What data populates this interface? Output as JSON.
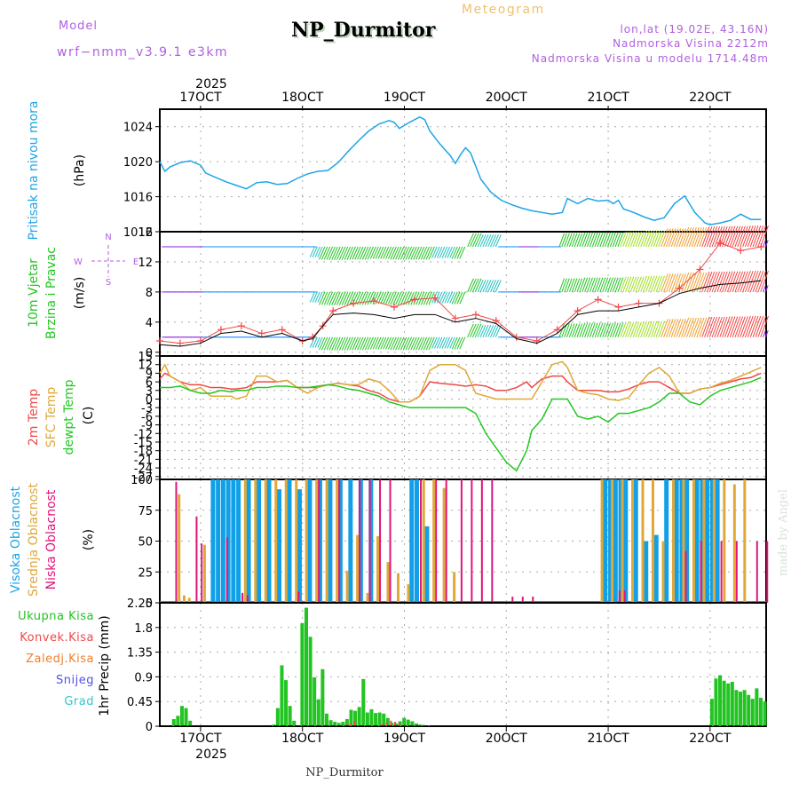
{
  "header": {
    "model_label": "Model",
    "model_name": "wrf−nmm_v3.9.1  e3km",
    "title": "NP_Durmitor",
    "subtitle": "Meteogram",
    "location": "lon,lat (19.02E, 43.16N)",
    "elevation": "Nadmorska Visina 2212m",
    "model_elevation": "Nadmorska Visina u modelu 1714.48m",
    "footer_title": "NP_Durmitor",
    "watermark": "made by Angel"
  },
  "colors": {
    "pressure": "#1ea5e6",
    "wind_label": "#22c422",
    "compass": "#b060e0",
    "temp2m": "#f04848",
    "sfc_temp": "#e0a838",
    "dewpt": "#22c822",
    "cloud_high": "#10a0e8",
    "cloud_mid": "#e0a838",
    "cloud_low": "#e0157a",
    "precip_total": "#22c422",
    "precip_conv": "#f04848",
    "precip_frz": "#f08030",
    "snow": "#5050e8",
    "hail": "#30c8c8",
    "model_text": "#b060e0",
    "meteogram_text": "#f0c070"
  },
  "time_axis": {
    "year": "2025",
    "start_day": 16.6,
    "end_day": 22.55,
    "ticks": [
      {
        "day": 17,
        "label": "17OCT"
      },
      {
        "day": 18,
        "label": "18OCT"
      },
      {
        "day": 19,
        "label": "19OCT"
      },
      {
        "day": 20,
        "label": "20OCT"
      },
      {
        "day": 21,
        "label": "21OCT"
      },
      {
        "day": 22,
        "label": "22OCT"
      }
    ]
  },
  "chart_data": [
    {
      "type": "line",
      "title": "Pritisak na nivou mora",
      "ylabel": "(hPa)",
      "ylim": [
        1012,
        1026
      ],
      "yticks": [
        1012,
        1016,
        1020,
        1024
      ],
      "grid": true,
      "x": [
        16.6,
        16.65,
        16.7,
        16.8,
        16.9,
        17.0,
        17.05,
        17.15,
        17.25,
        17.35,
        17.45,
        17.55,
        17.65,
        17.75,
        17.85,
        17.95,
        18.05,
        18.15,
        18.25,
        18.35,
        18.45,
        18.55,
        18.65,
        18.75,
        18.85,
        18.9,
        18.95,
        19.05,
        19.15,
        19.2,
        19.25,
        19.35,
        19.45,
        19.5,
        19.55,
        19.6,
        19.65,
        19.75,
        19.85,
        19.95,
        20.05,
        20.15,
        20.25,
        20.35,
        20.45,
        20.55,
        20.6,
        20.7,
        20.8,
        20.9,
        21.0,
        21.05,
        21.1,
        21.15,
        21.25,
        21.35,
        21.45,
        21.55,
        21.65,
        21.75,
        21.85,
        21.95,
        22.0,
        22.1,
        22.2,
        22.3,
        22.4,
        22.5
      ],
      "series": [
        {
          "name": "SLP",
          "values": [
            1020.0,
            1018.9,
            1019.4,
            1019.9,
            1020.1,
            1019.6,
            1018.7,
            1018.2,
            1017.7,
            1017.3,
            1016.9,
            1017.6,
            1017.7,
            1017.4,
            1017.5,
            1018.1,
            1018.6,
            1018.9,
            1019.0,
            1019.9,
            1021.2,
            1022.4,
            1023.5,
            1024.3,
            1024.7,
            1024.5,
            1023.8,
            1024.5,
            1025.1,
            1024.8,
            1023.5,
            1022.0,
            1020.7,
            1019.8,
            1020.8,
            1021.6,
            1021.0,
            1018.0,
            1016.5,
            1015.6,
            1015.1,
            1014.7,
            1014.4,
            1014.2,
            1014.0,
            1014.2,
            1015.8,
            1015.2,
            1015.8,
            1015.5,
            1015.6,
            1015.2,
            1015.6,
            1014.6,
            1014.2,
            1013.7,
            1013.3,
            1013.6,
            1015.2,
            1016.1,
            1014.2,
            1013.0,
            1012.8,
            1013.0,
            1013.3,
            1014.0,
            1013.4,
            1013.4
          ]
        }
      ]
    },
    {
      "type": "line",
      "title": "10m Vjetar Brzina i Pravac",
      "ylabel": "(m/s)",
      "ylim": [
        -0.5,
        16
      ],
      "yticks": [
        0,
        4,
        8,
        12,
        16
      ],
      "grid": true,
      "compass": {
        "n": "N",
        "s": "S",
        "w": "W",
        "e": "E"
      },
      "x": [
        16.6,
        16.8,
        17.0,
        17.2,
        17.4,
        17.6,
        17.8,
        18.0,
        18.1,
        18.2,
        18.3,
        18.5,
        18.7,
        18.9,
        19.1,
        19.3,
        19.5,
        19.7,
        19.9,
        20.1,
        20.3,
        20.5,
        20.7,
        20.9,
        21.1,
        21.3,
        21.5,
        21.7,
        21.9,
        22.1,
        22.3,
        22.5
      ],
      "series": [
        {
          "name": "gust",
          "values": [
            1.5,
            1.2,
            1.5,
            3.0,
            3.5,
            2.5,
            3.0,
            1.5,
            2.0,
            3.5,
            5.5,
            6.5,
            6.8,
            6.0,
            7.0,
            7.2,
            4.5,
            5.0,
            4.2,
            2.0,
            1.5,
            3.0,
            5.5,
            7.0,
            6.0,
            6.5,
            6.5,
            8.5,
            11.0,
            14.5,
            13.5,
            14.0
          ]
        },
        {
          "name": "wind_speed",
          "values": [
            1.0,
            0.8,
            1.2,
            2.5,
            2.8,
            2.0,
            2.5,
            1.5,
            1.8,
            3.5,
            5.0,
            5.2,
            5.0,
            4.5,
            5.0,
            5.0,
            4.0,
            4.5,
            3.8,
            1.8,
            1.2,
            2.5,
            5.0,
            5.5,
            5.5,
            6.0,
            6.5,
            7.8,
            8.5,
            9.0,
            9.2,
            9.5
          ]
        }
      ],
      "barb_rows": [
        2,
        8,
        14
      ]
    },
    {
      "type": "line",
      "title": "2m Temp / SFC Temp / dewpt Temp",
      "ylabel": "(C)",
      "ylim": [
        -28,
        15
      ],
      "yticks": [
        15,
        12,
        9,
        6,
        3,
        0,
        -3,
        -6,
        -9,
        -12,
        -15,
        -18,
        -21,
        -24,
        -27
      ],
      "grid": true,
      "x": [
        16.6,
        16.65,
        16.7,
        16.8,
        16.9,
        17.0,
        17.1,
        17.2,
        17.3,
        17.35,
        17.45,
        17.55,
        17.65,
        17.75,
        17.85,
        17.95,
        18.05,
        18.15,
        18.25,
        18.35,
        18.45,
        18.55,
        18.65,
        18.75,
        18.85,
        18.95,
        19.05,
        19.15,
        19.25,
        19.35,
        19.5,
        19.6,
        19.7,
        19.8,
        19.9,
        20.0,
        20.1,
        20.2,
        20.25,
        20.35,
        20.45,
        20.55,
        20.6,
        20.7,
        20.8,
        20.9,
        21.0,
        21.1,
        21.2,
        21.3,
        21.4,
        21.5,
        21.6,
        21.7,
        21.8,
        21.9,
        22.0,
        22.1,
        22.2,
        22.3,
        22.4,
        22.5
      ],
      "series": [
        {
          "name": "2m Temp",
          "values": [
            7,
            9,
            8,
            6,
            5,
            5,
            4,
            4,
            3.5,
            3.5,
            4,
            6,
            6,
            6,
            6.5,
            4,
            4,
            4,
            5,
            5.5,
            5,
            4.5,
            3,
            2,
            0,
            -1,
            -1,
            1,
            6,
            5.5,
            5,
            4.5,
            5,
            4.5,
            3,
            3,
            4,
            6,
            4,
            7,
            8,
            8,
            6,
            3,
            3,
            3,
            2.5,
            2.5,
            3.5,
            5,
            6,
            6,
            4,
            2,
            2,
            3.5,
            4,
            5,
            6,
            7,
            7.5,
            9
          ]
        },
        {
          "name": "SFC Temp",
          "values": [
            9,
            12,
            8,
            6,
            3,
            4,
            1,
            1,
            1,
            0,
            1,
            8,
            8,
            6,
            6.5,
            4,
            2,
            4,
            5,
            5.5,
            5,
            5,
            7,
            6,
            3,
            -1,
            -1,
            1,
            10,
            12,
            12,
            10,
            2,
            1,
            0,
            0,
            0,
            0,
            0,
            6,
            12,
            13,
            11,
            3,
            2,
            1.5,
            0,
            -0.5,
            0.5,
            5,
            9,
            11,
            8,
            2,
            2,
            3.5,
            4,
            5.5,
            6.5,
            8,
            9.5,
            11
          ]
        },
        {
          "name": "dewpt Temp",
          "values": [
            4,
            4,
            4,
            4.5,
            3,
            2,
            2,
            3,
            2.5,
            3,
            3,
            4,
            4,
            4.5,
            4.5,
            4,
            4,
            4.5,
            5,
            4.5,
            3.5,
            3,
            2,
            1,
            -1,
            -2,
            -3,
            -3,
            -3,
            -3,
            -3,
            -3,
            -5,
            -12,
            -17,
            -22,
            -25,
            -18,
            -11,
            -7,
            0,
            0,
            0,
            -6,
            -7,
            -6,
            -8,
            -5,
            -5,
            -4,
            -3,
            -1,
            2,
            2,
            -1,
            -2,
            1,
            3,
            4,
            5,
            6,
            7.5
          ]
        }
      ]
    },
    {
      "type": "bar",
      "title": "Visoka / Srednja / Niska Oblacnost",
      "ylabel": "(%)",
      "ylim": [
        0,
        100
      ],
      "yticks": [
        0,
        25,
        50,
        75,
        100
      ],
      "grid": true,
      "series": [
        {
          "name": "Visoka Oblacnost",
          "x": [
            17.1,
            17.15,
            17.2,
            17.25,
            17.3,
            17.35,
            17.45,
            17.55,
            17.65,
            17.75,
            17.85,
            17.95,
            18.05,
            18.15,
            18.25,
            18.35,
            18.45,
            18.55,
            18.65,
            19.05,
            19.1,
            19.2,
            20.95,
            21.0,
            21.05,
            21.1,
            21.15,
            21.25,
            21.35,
            21.45,
            21.55,
            21.65,
            21.7,
            21.75,
            21.85,
            21.9,
            21.95,
            22.0,
            22.05
          ],
          "values": [
            100,
            100,
            100,
            100,
            100,
            100,
            100,
            100,
            100,
            92,
            100,
            92,
            100,
            100,
            100,
            100,
            100,
            100,
            100,
            100,
            100,
            62,
            100,
            100,
            100,
            100,
            100,
            100,
            50,
            55,
            100,
            100,
            100,
            100,
            100,
            100,
            100,
            100,
            100
          ]
        },
        {
          "name": "Srednja Oblacnost",
          "x": [
            16.75,
            16.8,
            16.85,
            17.0,
            17.4,
            17.5,
            17.6,
            17.7,
            17.8,
            17.9,
            18.0,
            18.1,
            18.2,
            18.3,
            18.4,
            18.5,
            18.6,
            18.7,
            18.8,
            18.9,
            19.0,
            19.15,
            19.25,
            19.35,
            19.45,
            20.9,
            21.0,
            21.1,
            21.2,
            21.3,
            21.4,
            21.5,
            21.6,
            21.7,
            21.8,
            21.9,
            22.0,
            22.1,
            22.2,
            22.3
          ],
          "values": [
            88,
            6,
            4,
            47,
            100,
            100,
            100,
            100,
            100,
            100,
            100,
            100,
            100,
            100,
            26,
            55,
            8,
            54,
            33,
            24,
            15,
            100,
            100,
            93,
            25,
            100,
            100,
            100,
            100,
            100,
            100,
            50,
            100,
            100,
            100,
            100,
            100,
            100,
            96,
            100
          ]
        },
        {
          "name": "Niska Oblacnost",
          "x": [
            16.7,
            16.9,
            16.95,
            17.2,
            17.35,
            17.4,
            17.9,
            18.1,
            18.3,
            18.5,
            18.6,
            18.7,
            18.8,
            19.1,
            19.25,
            19.35,
            19.5,
            19.6,
            19.7,
            19.8,
            20.0,
            20.1,
            20.2,
            21.05,
            21.1,
            21.7,
            21.85,
            22.05,
            22.2,
            22.4,
            22.5
          ],
          "values": [
            98,
            70,
            48,
            53,
            8,
            6,
            9,
            100,
            100,
            100,
            100,
            100,
            100,
            100,
            100,
            100,
            100,
            100,
            100,
            100,
            5,
            5,
            5,
            10,
            10,
            42,
            50,
            50,
            50,
            50,
            50
          ]
        }
      ]
    },
    {
      "type": "bar",
      "title": "1hr Precip",
      "ylabel": "1hr Precip (mm)",
      "ylim": [
        0,
        2.25
      ],
      "yticks": [
        0,
        0.45,
        0.9,
        1.35,
        1.8,
        2.25
      ],
      "grid": true,
      "legend": [
        "Ukupna Kisa",
        "Konvek.Kisa",
        "Zaledj.Kisa",
        "Snijeg",
        "Grad"
      ],
      "series": [
        {
          "name": "Ukupna Kisa",
          "x": [
            16.72,
            16.76,
            16.8,
            16.84,
            16.88,
            17.7,
            17.74,
            17.78,
            17.82,
            17.86,
            17.9,
            17.98,
            18.02,
            18.06,
            18.1,
            18.14,
            18.18,
            18.22,
            18.26,
            18.3,
            18.34,
            18.38,
            18.42,
            18.46,
            18.5,
            18.54,
            18.58,
            18.62,
            18.66,
            18.7,
            18.74,
            18.78,
            18.82,
            18.86,
            18.9,
            18.94,
            18.98,
            19.02,
            19.06,
            19.1,
            19.14,
            19.18,
            19.22,
            22.0,
            22.04,
            22.08,
            22.12,
            22.16,
            22.2,
            22.24,
            22.28,
            22.32,
            22.36,
            22.4,
            22.44,
            22.48,
            22.52
          ],
          "values": [
            0.13,
            0.19,
            0.37,
            0.33,
            0.1,
            0.03,
            0.33,
            1.11,
            0.84,
            0.37,
            0.1,
            1.88,
            2.16,
            1.63,
            0.89,
            0.49,
            1.04,
            0.23,
            0.11,
            0.08,
            0.06,
            0.08,
            0.13,
            0.3,
            0.28,
            0.35,
            0.86,
            0.25,
            0.31,
            0.24,
            0.25,
            0.23,
            0.15,
            0.06,
            0.05,
            0.09,
            0.15,
            0.12,
            0.09,
            0.05,
            0.03,
            0.02,
            0.01,
            0.5,
            0.87,
            0.93,
            0.83,
            0.78,
            0.81,
            0.66,
            0.63,
            0.66,
            0.57,
            0.5,
            0.69,
            0.52,
            0.45
          ]
        },
        {
          "name": "Konvek.Kisa",
          "x": [
            18.42,
            18.46,
            18.5,
            18.78,
            18.82,
            18.86,
            18.9,
            18.94
          ],
          "values": [
            0.03,
            0.05,
            0.1,
            0.05,
            0.07,
            0.1,
            0.08,
            0.06
          ]
        }
      ]
    }
  ]
}
